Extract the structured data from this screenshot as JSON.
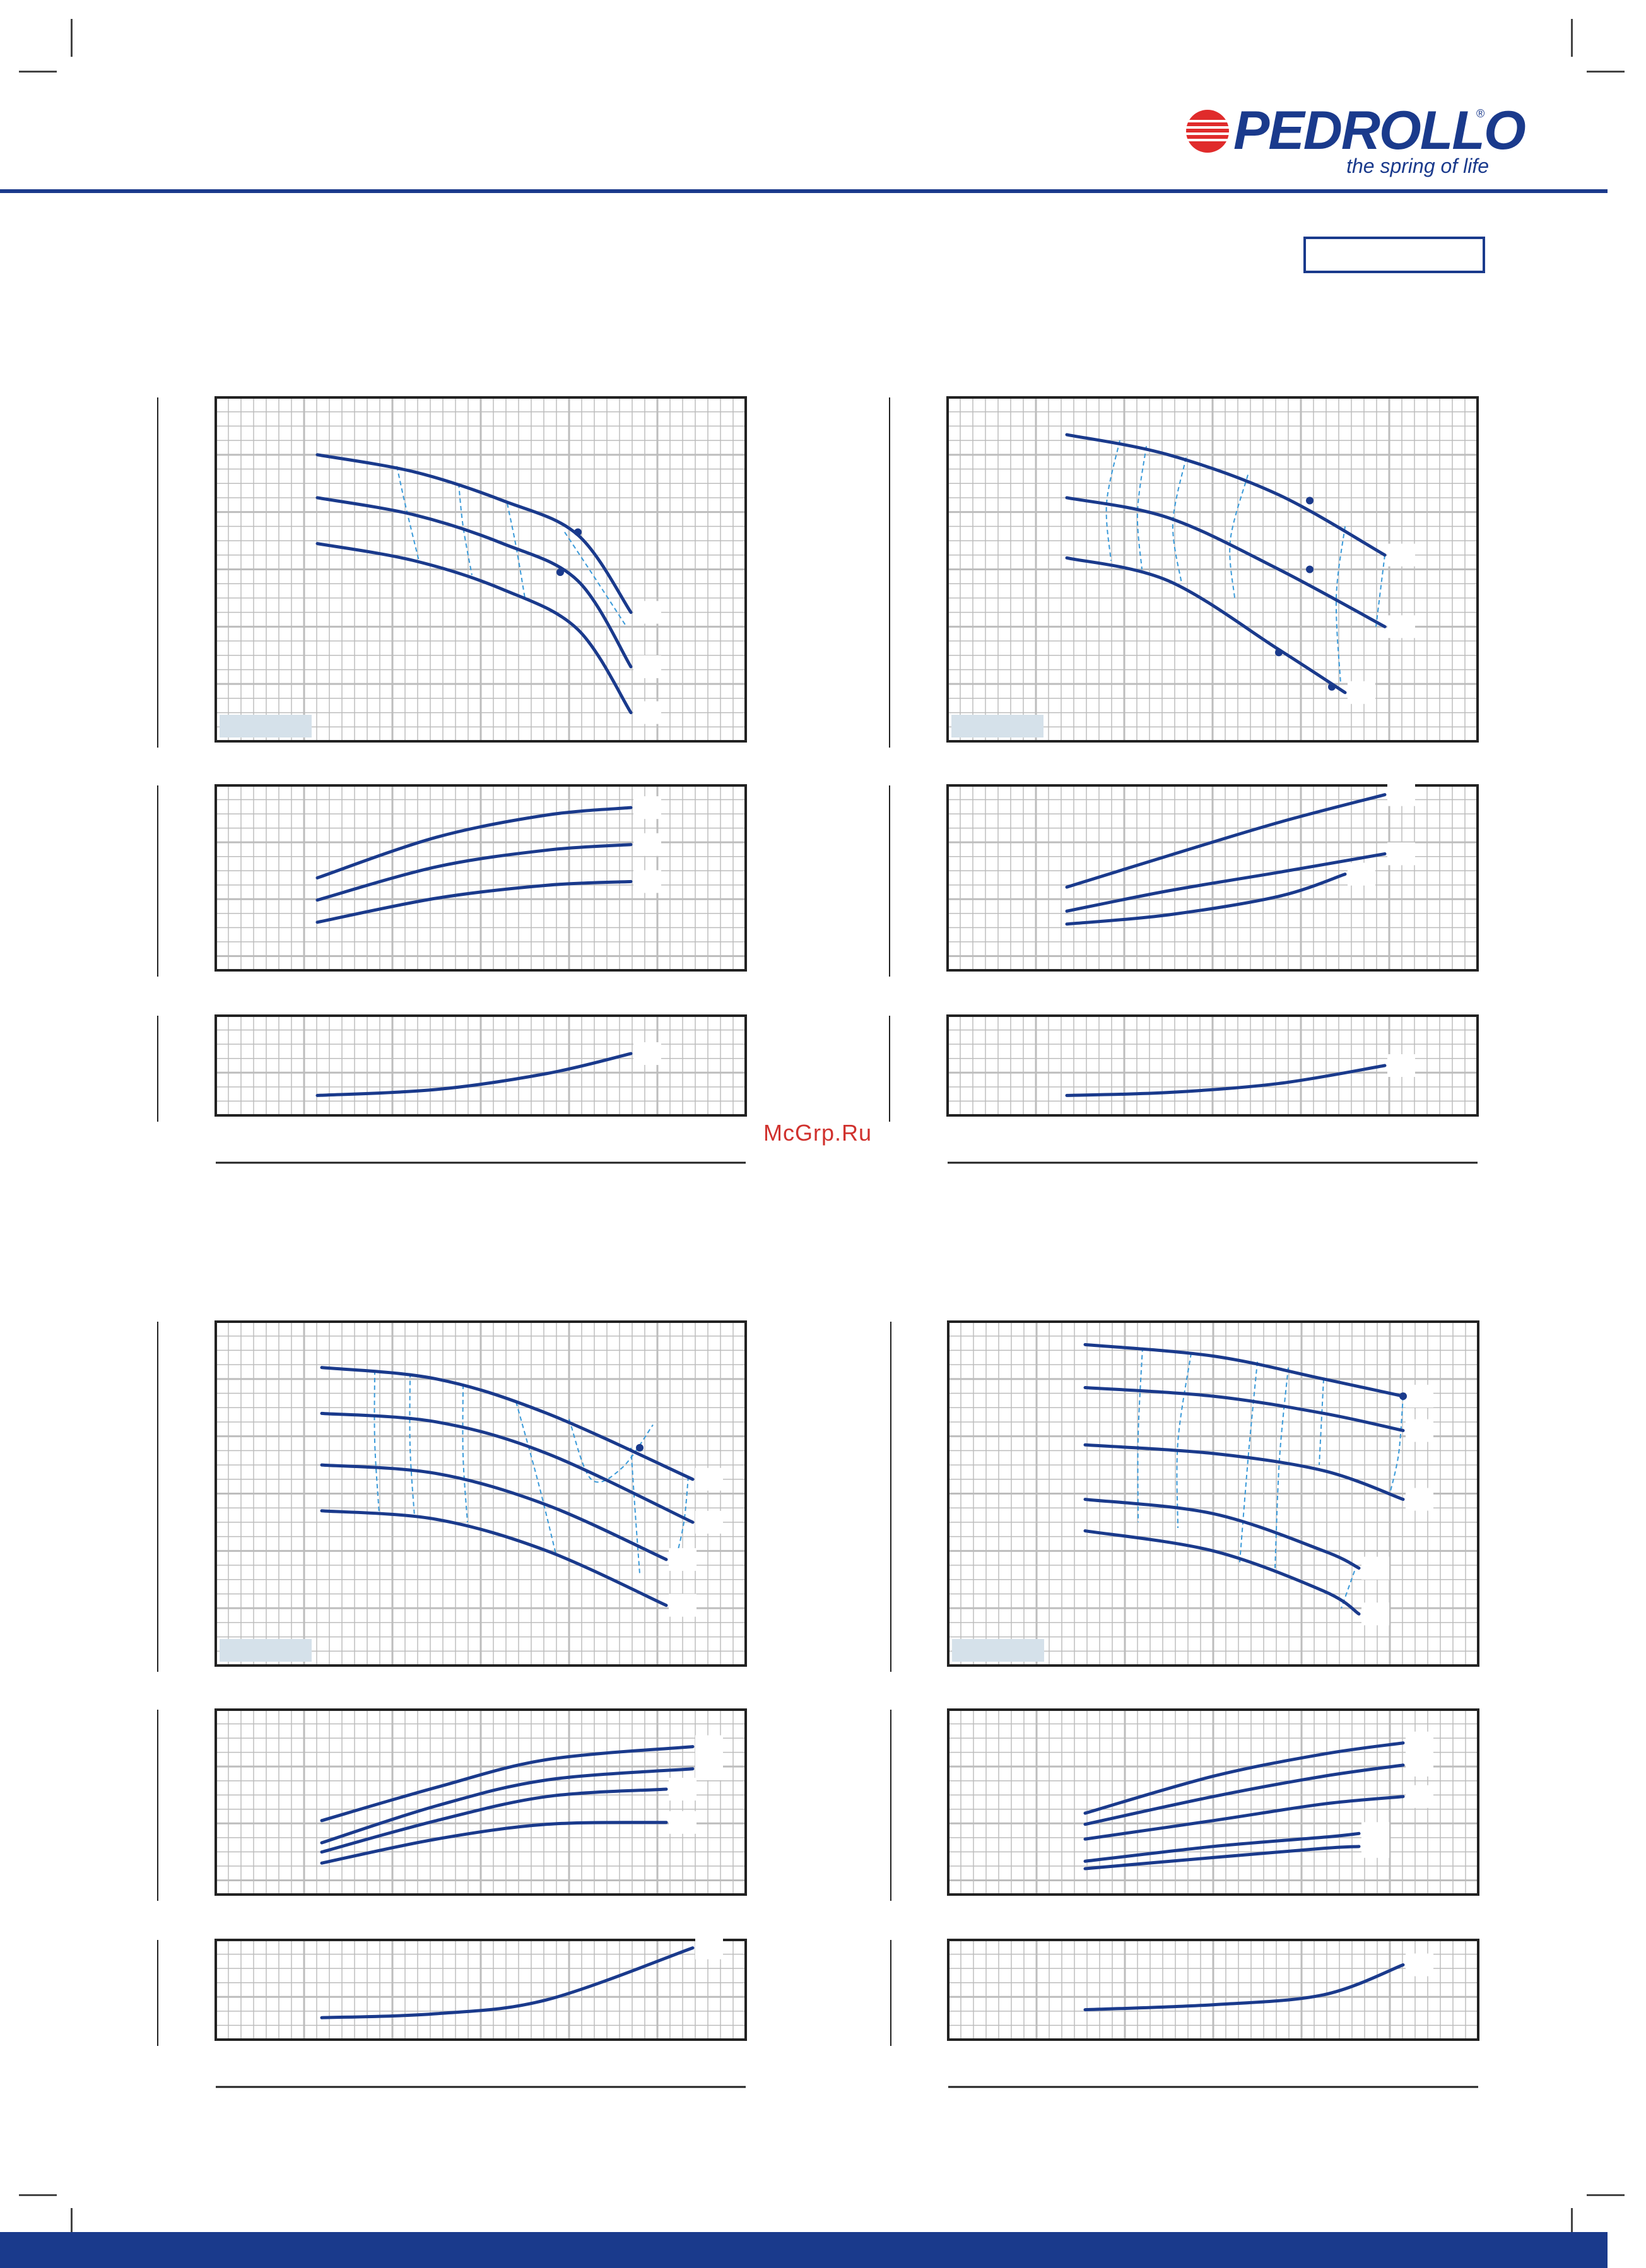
{
  "header": {
    "brand": "PEDROLLO",
    "tagline": "the spring of life",
    "brand_color": "#1a3a8c",
    "logo_accent_color": "#e02b2b"
  },
  "watermark": "McGrp.Ru",
  "colors": {
    "curve": "#1a3a8c",
    "dashed": "#3a9ad9",
    "grid": "#bdbdbd",
    "label_bg": "#d5e1ea"
  },
  "chart_data": [
    {
      "type": "line",
      "panel": "top-left",
      "title": "",
      "xlabel": "",
      "ylabel": "",
      "grid": true,
      "xlim": [
        0,
        12
      ],
      "ylim": [
        0,
        12
      ],
      "head": {
        "series": [
          {
            "x": [
              2.3,
              4.5,
              6.5,
              8.2,
              9.4
            ],
            "y": [
              10.0,
              9.4,
              8.4,
              7.2,
              4.5
            ]
          },
          {
            "x": [
              2.3,
              4.5,
              6.5,
              8.2,
              9.4
            ],
            "y": [
              8.5,
              7.9,
              6.9,
              5.6,
              2.6
            ]
          },
          {
            "x": [
              2.3,
              4.5,
              6.5,
              8.2,
              9.4
            ],
            "y": [
              6.9,
              6.3,
              5.3,
              3.9,
              1.0
            ]
          }
        ],
        "dashed": [
          {
            "x": [
              4.1,
              4.3,
              4.6
            ],
            "y": [
              9.6,
              8.2,
              6.3
            ]
          },
          {
            "x": [
              5.5,
              5.6,
              5.8
            ],
            "y": [
              9.0,
              7.5,
              5.8
            ]
          },
          {
            "x": [
              6.6,
              6.8,
              7.0
            ],
            "y": [
              8.3,
              6.8,
              5.0
            ]
          },
          {
            "x": [
              7.9,
              8.5,
              9.3
            ],
            "y": [
              7.3,
              5.9,
              4.0
            ]
          }
        ],
        "points": [
          {
            "x": 8.2,
            "y": 7.3
          },
          {
            "x": 7.8,
            "y": 5.9
          }
        ]
      },
      "power": {
        "ylim": [
          0,
          10
        ],
        "series": [
          {
            "x": [
              2.3,
              5,
              7.5,
              9.4
            ],
            "y": [
              5.0,
              7.2,
              8.4,
              8.8
            ]
          },
          {
            "x": [
              2.3,
              5,
              7.5,
              9.4
            ],
            "y": [
              3.8,
              5.6,
              6.5,
              6.8
            ]
          },
          {
            "x": [
              2.3,
              5,
              7.5,
              9.4
            ],
            "y": [
              2.6,
              3.9,
              4.6,
              4.8
            ]
          }
        ]
      },
      "npsh": {
        "ylim": [
          0,
          10
        ],
        "series": [
          {
            "x": [
              2.3,
              5,
              7.5,
              9.4
            ],
            "y": [
              2.0,
              2.6,
              4.2,
              6.2
            ]
          }
        ]
      }
    },
    {
      "type": "line",
      "panel": "top-right",
      "title": "",
      "xlabel": "",
      "ylabel": "",
      "grid": true,
      "xlim": [
        0,
        12
      ],
      "ylim": [
        0,
        12
      ],
      "head": {
        "series": [
          {
            "x": [
              2.7,
              5,
              7.5,
              9.9
            ],
            "y": [
              10.7,
              10.0,
              8.6,
              6.5
            ]
          },
          {
            "x": [
              2.7,
              5,
              7.5,
              9.9
            ],
            "y": [
              8.5,
              7.8,
              6.0,
              4.0
            ]
          },
          {
            "x": [
              2.7,
              5,
              7.5,
              9.0
            ],
            "y": [
              6.4,
              5.6,
              3.2,
              1.7
            ]
          }
        ],
        "dashed": [
          {
            "x": [
              3.9,
              3.6,
              3.7
            ],
            "y": [
              10.5,
              8.3,
              6.3
            ]
          },
          {
            "x": [
              4.5,
              4.3,
              4.4
            ],
            "y": [
              10.3,
              8.0,
              6.0
            ]
          },
          {
            "x": [
              5.4,
              5.1,
              5.3
            ],
            "y": [
              9.9,
              7.6,
              5.5
            ]
          },
          {
            "x": [
              6.8,
              6.4,
              6.5
            ],
            "y": [
              9.3,
              7.0,
              5.0
            ]
          },
          {
            "x": [
              9.0,
              8.8,
              8.9
            ],
            "y": [
              7.5,
              5.0,
              2.0
            ]
          },
          {
            "x": [
              9.9,
              9.7
            ],
            "y": [
              6.5,
              4.0
            ]
          }
        ],
        "points": [
          {
            "x": 8.2,
            "y": 8.4
          },
          {
            "x": 8.2,
            "y": 6.0
          },
          {
            "x": 7.5,
            "y": 3.1
          },
          {
            "x": 8.7,
            "y": 1.9
          }
        ]
      },
      "power": {
        "ylim": [
          0,
          10
        ],
        "series": [
          {
            "x": [
              2.7,
              5,
              7.5,
              9.9
            ],
            "y": [
              4.5,
              6.2,
              8.0,
              9.5
            ]
          },
          {
            "x": [
              2.7,
              5,
              7.5,
              9.9
            ],
            "y": [
              3.2,
              4.3,
              5.3,
              6.3
            ]
          },
          {
            "x": [
              2.7,
              5,
              7.5,
              9.0
            ],
            "y": [
              2.5,
              3.0,
              4.0,
              5.2
            ]
          }
        ]
      },
      "npsh": {
        "ylim": [
          0,
          10
        ],
        "series": [
          {
            "x": [
              2.7,
              5,
              7.5,
              9.9
            ],
            "y": [
              2.0,
              2.3,
              3.2,
              5.0
            ]
          }
        ]
      }
    },
    {
      "type": "line",
      "panel": "bottom-left",
      "title": "",
      "xlabel": "",
      "ylabel": "",
      "grid": true,
      "xlim": [
        0,
        12
      ],
      "ylim": [
        0,
        12
      ],
      "head": {
        "series": [
          {
            "x": [
              2.4,
              5,
              7.5,
              10.8
            ],
            "y": [
              10.4,
              10.0,
              8.8,
              6.5
            ]
          },
          {
            "x": [
              2.4,
              5,
              7.5,
              10.8
            ],
            "y": [
              8.8,
              8.5,
              7.4,
              5.0
            ]
          },
          {
            "x": [
              2.4,
              5,
              7.5,
              10.2
            ],
            "y": [
              7.0,
              6.7,
              5.6,
              3.7
            ]
          },
          {
            "x": [
              2.4,
              5,
              7.5,
              10.2
            ],
            "y": [
              5.4,
              5.1,
              4.0,
              2.1
            ]
          }
        ],
        "dashed": [
          {
            "x": [
              3.6,
              3.6,
              3.7
            ],
            "y": [
              10.3,
              7.8,
              5.3
            ]
          },
          {
            "x": [
              4.4,
              4.4,
              4.5
            ],
            "y": [
              10.2,
              7.6,
              5.2
            ]
          },
          {
            "x": [
              5.6,
              5.6,
              5.7
            ],
            "y": [
              9.8,
              7.3,
              5.0
            ]
          },
          {
            "x": [
              6.8,
              7.3,
              7.7
            ],
            "y": [
              9.2,
              6.4,
              3.9
            ]
          },
          {
            "x": [
              8.0,
              8.5,
              9.2,
              9.9
            ],
            "y": [
              8.6,
              6.5,
              6.9,
              8.4
            ]
          },
          {
            "x": [
              9.4,
              9.5,
              9.6
            ],
            "y": [
              7.6,
              5.3,
              3.2
            ]
          },
          {
            "x": [
              10.7,
              10.6,
              10.4
            ],
            "y": [
              6.6,
              5.0,
              3.6
            ]
          }
        ],
        "points": [
          {
            "x": 9.6,
            "y": 7.6
          }
        ]
      },
      "power": {
        "ylim": [
          0,
          10
        ],
        "series": [
          {
            "x": [
              2.4,
              5,
              7.5,
              10.8
            ],
            "y": [
              4.0,
              5.8,
              7.3,
              8.0
            ]
          },
          {
            "x": [
              2.4,
              5,
              7.5,
              10.8
            ],
            "y": [
              2.8,
              4.8,
              6.2,
              6.8
            ]
          },
          {
            "x": [
              2.4,
              5,
              7.5,
              10.2
            ],
            "y": [
              2.3,
              4.0,
              5.3,
              5.7
            ]
          },
          {
            "x": [
              2.4,
              5,
              7.5,
              10.2
            ],
            "y": [
              1.7,
              3.0,
              3.8,
              3.9
            ]
          }
        ]
      },
      "npsh": {
        "ylim": [
          0,
          10
        ],
        "series": [
          {
            "x": [
              2.4,
              5,
              7.5,
              10.8
            ],
            "y": [
              2.2,
              2.6,
              4.0,
              9.2
            ]
          }
        ]
      }
    },
    {
      "type": "line",
      "panel": "bottom-right",
      "title": "",
      "xlabel": "",
      "ylabel": "",
      "grid": true,
      "xlim": [
        0,
        12
      ],
      "ylim": [
        0,
        12
      ],
      "head": {
        "series": [
          {
            "x": [
              3.1,
              6,
              8.5,
              10.3
            ],
            "y": [
              11.2,
              10.8,
              10.0,
              9.4
            ]
          },
          {
            "x": [
              3.1,
              6,
              8.5,
              10.3
            ],
            "y": [
              9.7,
              9.4,
              8.8,
              8.2
            ]
          },
          {
            "x": [
              3.1,
              6,
              8.5,
              10.3
            ],
            "y": [
              7.7,
              7.4,
              6.8,
              5.8
            ]
          },
          {
            "x": [
              3.1,
              6,
              8.5,
              9.3
            ],
            "y": [
              5.8,
              5.3,
              4.0,
              3.4
            ]
          },
          {
            "x": [
              3.1,
              6,
              8.5,
              9.3
            ],
            "y": [
              4.7,
              4.0,
              2.6,
              1.8
            ]
          }
        ],
        "dashed": [
          {
            "x": [
              4.4,
              4.3,
              4.3
            ],
            "y": [
              11.1,
              8.0,
              5.0
            ]
          },
          {
            "x": [
              5.5,
              5.2,
              5.2
            ],
            "y": [
              10.9,
              7.8,
              4.8
            ]
          },
          {
            "x": [
              7.0,
              6.8,
              6.6
            ],
            "y": [
              10.6,
              7.4,
              3.6
            ]
          },
          {
            "x": [
              7.7,
              7.5,
              7.4
            ],
            "y": [
              10.4,
              7.2,
              3.4
            ]
          },
          {
            "x": [
              8.5,
              8.4
            ],
            "y": [
              10.0,
              7.0
            ]
          },
          {
            "x": [
              10.3,
              10.2,
              10.0
            ],
            "y": [
              9.4,
              7.4,
              6.0
            ]
          },
          {
            "x": [
              9.2,
              8.9
            ],
            "y": [
              3.3,
              2.0
            ]
          }
        ],
        "points": [
          {
            "x": 10.3,
            "y": 9.4
          }
        ]
      },
      "power": {
        "ylim": [
          0,
          10
        ],
        "series": [
          {
            "x": [
              3.1,
              6,
              8.5,
              10.3
            ],
            "y": [
              4.4,
              6.4,
              7.6,
              8.2
            ]
          },
          {
            "x": [
              3.1,
              6,
              8.5,
              10.3
            ],
            "y": [
              3.8,
              5.3,
              6.4,
              7.0
            ]
          },
          {
            "x": [
              3.1,
              6,
              8.5,
              10.3
            ],
            "y": [
              3.0,
              4.0,
              4.9,
              5.3
            ]
          },
          {
            "x": [
              3.1,
              6,
              8.5,
              9.3
            ],
            "y": [
              1.8,
              2.6,
              3.1,
              3.3
            ]
          },
          {
            "x": [
              3.1,
              6,
              8.5,
              9.3
            ],
            "y": [
              1.4,
              2.0,
              2.5,
              2.6
            ]
          }
        ]
      },
      "npsh": {
        "ylim": [
          0,
          10
        ],
        "series": [
          {
            "x": [
              3.1,
              6,
              8.5,
              10.3
            ],
            "y": [
              3.0,
              3.5,
              4.5,
              7.5
            ]
          }
        ]
      }
    }
  ]
}
